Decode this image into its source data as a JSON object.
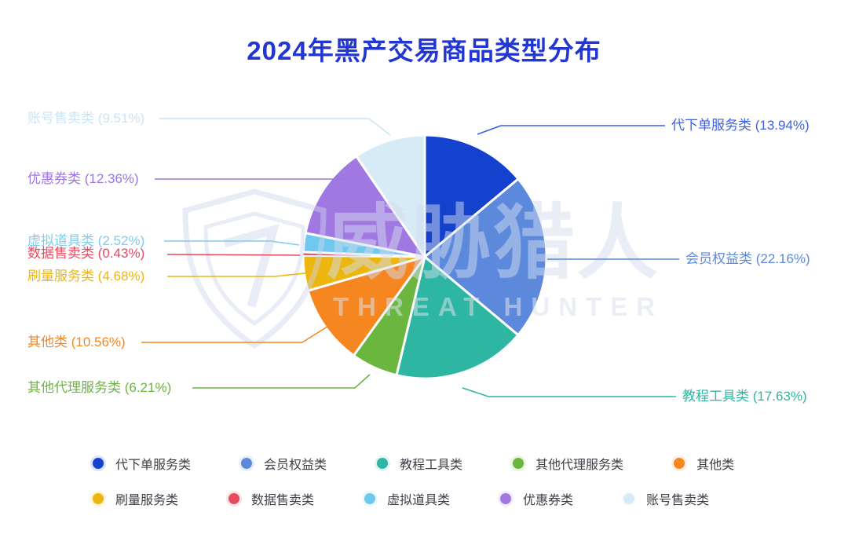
{
  "title": "2024年黑产交易商品类型分布",
  "accent": {
    "title_color": "#2236d2",
    "legend_text_color": "#3c4148"
  },
  "watermark": {
    "cn": "威胁猎人",
    "en": "THREAT HUNTER"
  },
  "chart_data": {
    "type": "pie",
    "title": "2024年黑产交易商品类型分布",
    "unit": "%",
    "start_angle_deg": 0,
    "direction": "clockwise",
    "legend_position": "bottom",
    "series": [
      {
        "name": "代下单服务类",
        "value": 13.94,
        "color": "#1441cd",
        "label_color": "#3d5fe0"
      },
      {
        "name": "会员权益类",
        "value": 22.16,
        "color": "#5d89dc",
        "label_color": "#5d89dc"
      },
      {
        "name": "教程工具类",
        "value": 17.63,
        "color": "#2db6a1",
        "label_color": "#2db6a1"
      },
      {
        "name": "其他代理服务类",
        "value": 6.21,
        "color": "#6ab63f",
        "label_color": "#6ab63f"
      },
      {
        "name": "其他类",
        "value": 10.56,
        "color": "#f6861f",
        "label_color": "#f6861f"
      },
      {
        "name": "刷量服务类",
        "value": 4.68,
        "color": "#edb60e",
        "label_color": "#edb60e"
      },
      {
        "name": "数据售卖类",
        "value": 0.43,
        "color": "#e84a5f",
        "label_color": "#e84a5f"
      },
      {
        "name": "虚拟道具类",
        "value": 2.52,
        "color": "#6fc9ee",
        "label_color": "#7fccee"
      },
      {
        "name": "优惠券类",
        "value": 12.36,
        "color": "#a177e2",
        "label_color": "#9d74e2"
      },
      {
        "name": "账号售卖类",
        "value": 9.51,
        "color": "#d7ebf6",
        "label_color": "#c9e4f4"
      }
    ],
    "legend_rows": [
      [
        "代下单服务类",
        "会员权益类",
        "教程工具类",
        "其他代理服务类",
        "其他类"
      ],
      [
        "刷量服务类",
        "数据售卖类",
        "虚拟道具类",
        "优惠券类",
        "账号售卖类"
      ]
    ]
  }
}
